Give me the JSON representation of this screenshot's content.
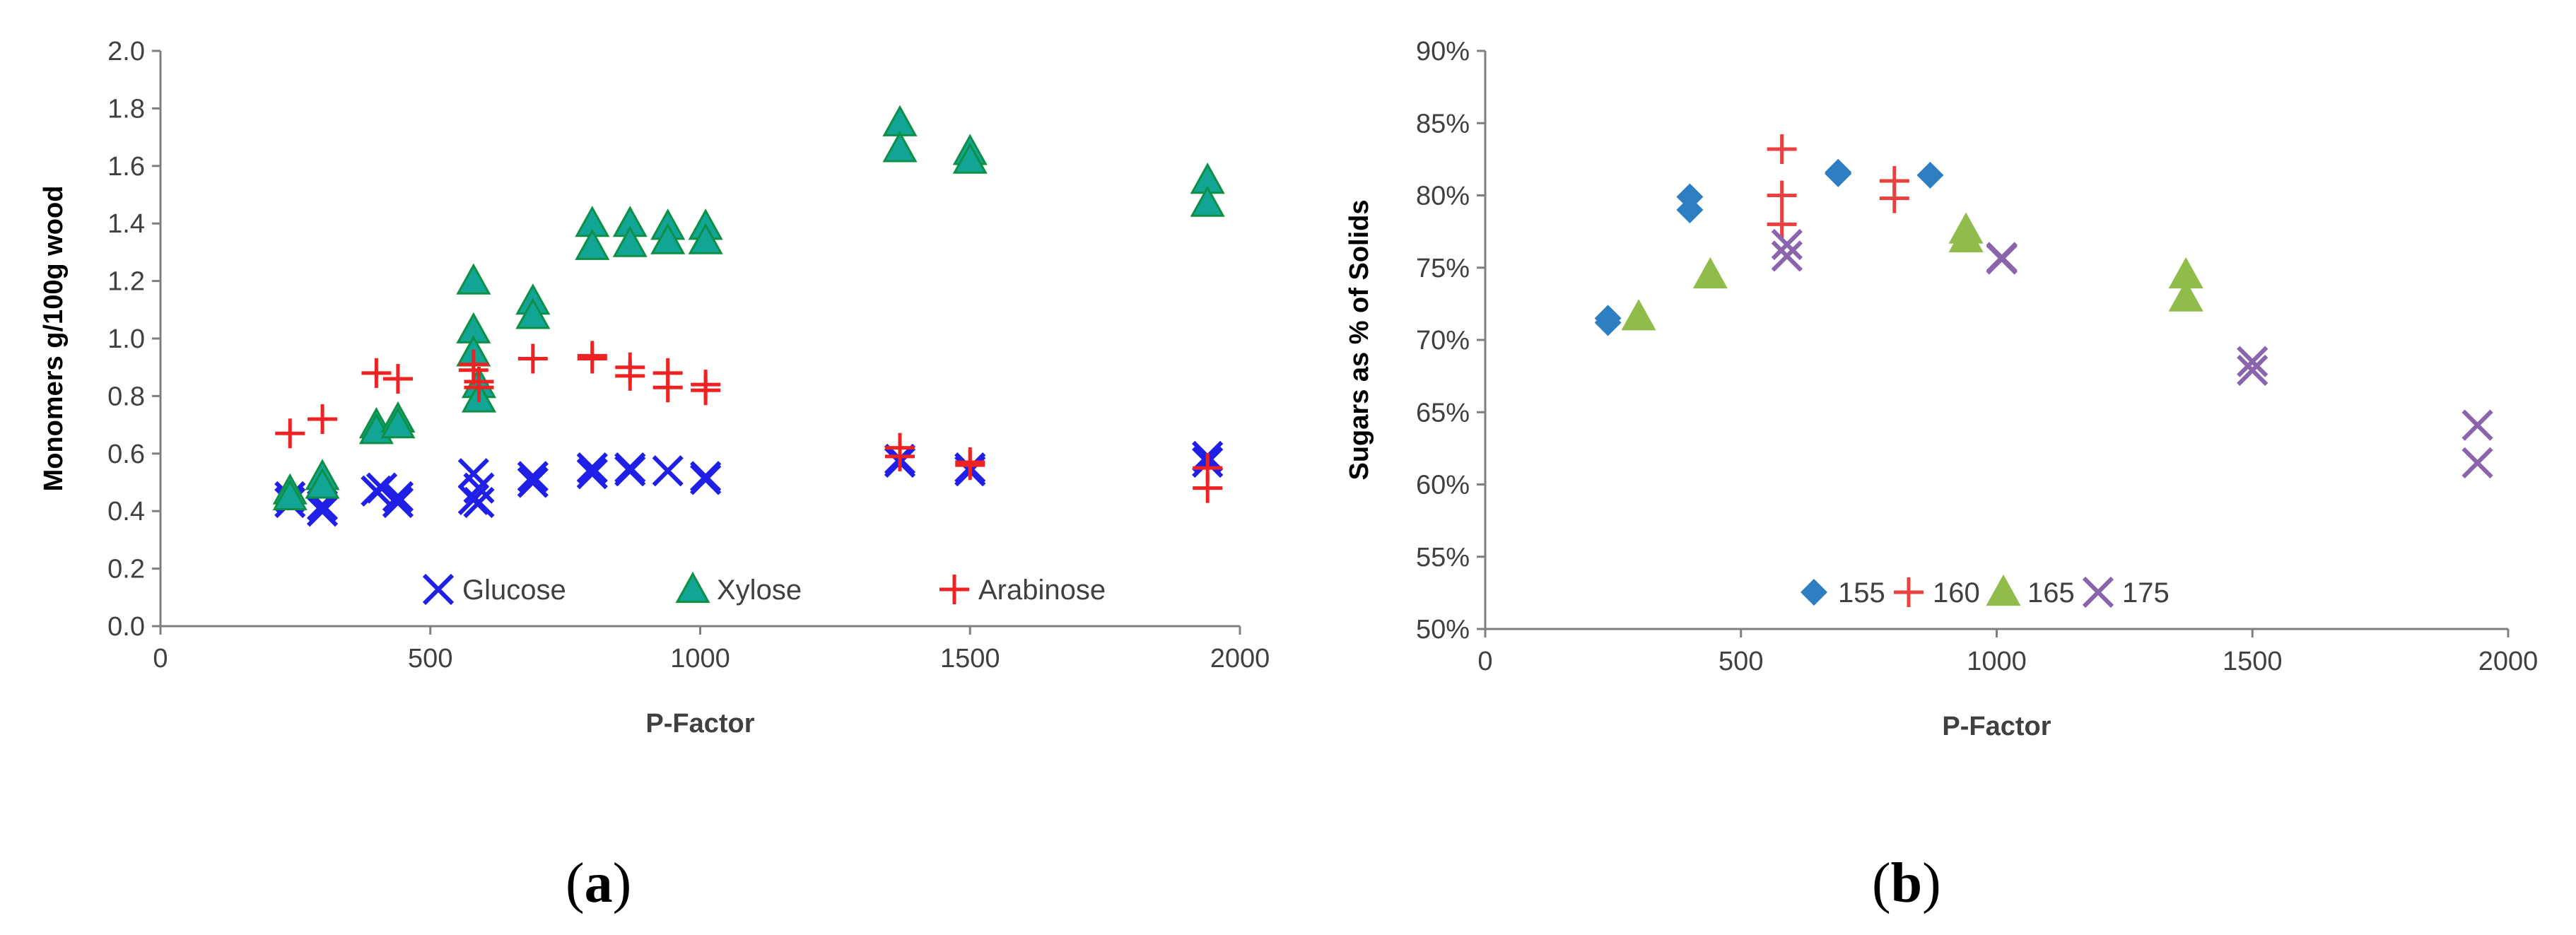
{
  "colors": {
    "glucose": "#1f1fe6",
    "xylose": "#12a596",
    "xylose_edge": "#0e8f45",
    "arabinose": "#ee2222",
    "t155": "#2e7fc2",
    "t160": "#e8413f",
    "t165": "#8fbc4b",
    "t175": "#8a64ad"
  },
  "chart_data": [
    {
      "type": "scatter",
      "panel": "(a)",
      "panel_open": "(",
      "panel_letter": "a",
      "panel_close": ")",
      "xlabel": "P-Factor",
      "ylabel": "Monomers g/100g wood",
      "xlim": [
        0,
        2000
      ],
      "ylim": [
        0,
        2.0
      ],
      "xticks": [
        "0",
        "500",
        "1000",
        "1500",
        "2000"
      ],
      "yticks": [
        "0.0",
        "0.2",
        "0.4",
        "0.6",
        "0.8",
        "1.0",
        "1.2",
        "1.4",
        "1.6",
        "1.8",
        "2.0"
      ],
      "legend": "bottom",
      "series": [
        {
          "name": "Glucose",
          "marker": "x",
          "color_key": "glucose",
          "points": [
            [
              240,
              0.43
            ],
            [
              240,
              0.45
            ],
            [
              300,
              0.4
            ],
            [
              300,
              0.42
            ],
            [
              400,
              0.47
            ],
            [
              410,
              0.48
            ],
            [
              440,
              0.43
            ],
            [
              440,
              0.45
            ],
            [
              580,
              0.53
            ],
            [
              580,
              0.44
            ],
            [
              590,
              0.48
            ],
            [
              590,
              0.43
            ],
            [
              690,
              0.52
            ],
            [
              690,
              0.5
            ],
            [
              800,
              0.55
            ],
            [
              800,
              0.53
            ],
            [
              870,
              0.55
            ],
            [
              870,
              0.54
            ],
            [
              940,
              0.54
            ],
            [
              1010,
              0.52
            ],
            [
              1010,
              0.51
            ],
            [
              1370,
              0.58
            ],
            [
              1370,
              0.57
            ],
            [
              1500,
              0.55
            ],
            [
              1500,
              0.54
            ],
            [
              1940,
              0.59
            ],
            [
              1940,
              0.57
            ]
          ]
        },
        {
          "name": "Xylose",
          "marker": "triangle",
          "color_key": "xylose",
          "points": [
            [
              240,
              0.47
            ],
            [
              240,
              0.45
            ],
            [
              300,
              0.52
            ],
            [
              300,
              0.49
            ],
            [
              400,
              0.7
            ],
            [
              400,
              0.68
            ],
            [
              440,
              0.72
            ],
            [
              440,
              0.7
            ],
            [
              580,
              1.2
            ],
            [
              580,
              1.03
            ],
            [
              580,
              0.95
            ],
            [
              590,
              0.84
            ],
            [
              590,
              0.79
            ],
            [
              690,
              1.13
            ],
            [
              690,
              1.08
            ],
            [
              800,
              1.4
            ],
            [
              800,
              1.32
            ],
            [
              870,
              1.4
            ],
            [
              870,
              1.33
            ],
            [
              940,
              1.39
            ],
            [
              940,
              1.34
            ],
            [
              1010,
              1.39
            ],
            [
              1010,
              1.34
            ],
            [
              1370,
              1.75
            ],
            [
              1370,
              1.66
            ],
            [
              1500,
              1.65
            ],
            [
              1500,
              1.62
            ],
            [
              1940,
              1.55
            ],
            [
              1940,
              1.47
            ]
          ]
        },
        {
          "name": "Arabinose",
          "marker": "plus",
          "color_key": "arabinose",
          "points": [
            [
              240,
              0.67
            ],
            [
              300,
              0.72
            ],
            [
              400,
              0.88
            ],
            [
              440,
              0.86
            ],
            [
              580,
              0.91
            ],
            [
              580,
              0.89
            ],
            [
              590,
              0.85
            ],
            [
              590,
              0.83
            ],
            [
              690,
              0.93
            ],
            [
              800,
              0.94
            ],
            [
              800,
              0.93
            ],
            [
              870,
              0.9
            ],
            [
              870,
              0.87
            ],
            [
              940,
              0.88
            ],
            [
              940,
              0.83
            ],
            [
              1010,
              0.84
            ],
            [
              1010,
              0.82
            ],
            [
              1370,
              0.62
            ],
            [
              1370,
              0.59
            ],
            [
              1500,
              0.57
            ],
            [
              1500,
              0.56
            ],
            [
              1940,
              0.55
            ],
            [
              1940,
              0.48
            ]
          ]
        }
      ]
    },
    {
      "type": "scatter",
      "panel": "(b)",
      "panel_open": "(",
      "panel_letter": "b",
      "panel_close": ")",
      "xlabel": "P-Factor",
      "ylabel": "Sugars as % of Solids",
      "xlim": [
        0,
        2000
      ],
      "ylim": [
        50,
        90
      ],
      "xticks": [
        "0",
        "500",
        "1000",
        "1500",
        "2000"
      ],
      "yticks": [
        "50%",
        "55%",
        "60%",
        "65%",
        "70%",
        "75%",
        "80%",
        "85%",
        "90%"
      ],
      "legend": "bottom",
      "series": [
        {
          "name": "155",
          "marker": "diamond",
          "color_key": "t155",
          "points": [
            [
              240,
              71.2
            ],
            [
              240,
              71.5
            ],
            [
              400,
              79.9
            ],
            [
              400,
              79.0
            ],
            [
              690,
              81.6
            ],
            [
              690,
              81.5
            ],
            [
              870,
              81.4
            ]
          ]
        },
        {
          "name": "160",
          "marker": "plus",
          "color_key": "t160",
          "points": [
            [
              580,
              83.2
            ],
            [
              580,
              80.0
            ],
            [
              580,
              78.0
            ],
            [
              800,
              81.0
            ],
            [
              800,
              79.8
            ]
          ]
        },
        {
          "name": "165",
          "marker": "triangle",
          "color_key": "t165",
          "points": [
            [
              300,
              71.6
            ],
            [
              440,
              74.5
            ],
            [
              940,
              77.6
            ],
            [
              940,
              77.0
            ],
            [
              1370,
              74.5
            ],
            [
              1370,
              72.9
            ]
          ]
        },
        {
          "name": "175",
          "marker": "x",
          "color_key": "t175",
          "points": [
            [
              590,
              76.6
            ],
            [
              590,
              75.8
            ],
            [
              1010,
              75.7
            ],
            [
              1010,
              75.6
            ],
            [
              1500,
              68.5
            ],
            [
              1500,
              67.9
            ],
            [
              1940,
              64.1
            ],
            [
              1940,
              61.5
            ]
          ]
        }
      ]
    }
  ]
}
